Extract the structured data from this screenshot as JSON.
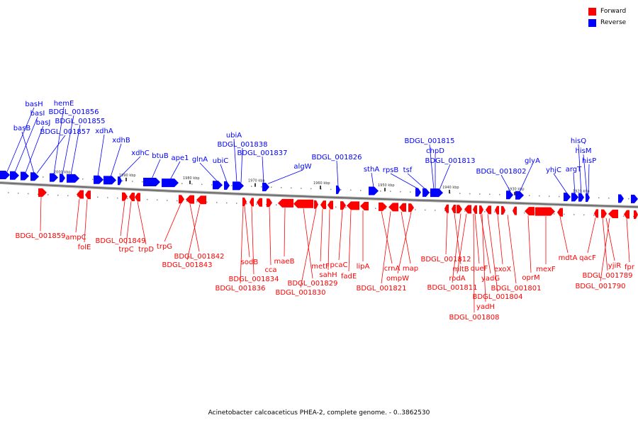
{
  "legend": [
    {
      "label": "Forward",
      "color": "#ff0000"
    },
    {
      "label": "Reverse",
      "color": "#0000ff"
    }
  ],
  "caption": "Acinetobacter calcoaceticus PHEA-2, complete genome. - 0..3862530",
  "ticks": [
    "2000 kbp",
    "1990 kbp",
    "1980 kbp",
    "1970 kbp",
    "1960 kbp",
    "1950 kbp",
    "1940 kbp",
    "1930 kbp",
    "1920 kbp"
  ],
  "reverse_labels": [
    "basH",
    "basI",
    "basJ",
    "basB",
    "hemE",
    "BDGL_001856",
    "BDGL_001855",
    "BDGL_001857",
    "xdhA",
    "xdhB",
    "xdhC",
    "btuB",
    "ape1",
    "glnA",
    "ubiC",
    "ubiA",
    "BDGL_001838",
    "BDGL_001837",
    "algW",
    "BDGL_001826",
    "sthA",
    "rpsB",
    "tsf",
    "BDGL_001815",
    "chpD",
    "BDGL_001813",
    "BDGL_001802",
    "glyA",
    "yhjC",
    "argT",
    "hisQ",
    "hisM",
    "hisP"
  ],
  "forward_labels": [
    "BDGL_001859",
    "ampC",
    "folE",
    "BDGL_001849",
    "trpC",
    "trpD",
    "trpG",
    "BDGL_001842",
    "BDGL_001843",
    "sodB",
    "BDGL_001834",
    "BDGL_001836",
    "cca",
    "maeB",
    "BDGL_001829",
    "BDGL_001830",
    "metF",
    "sahH",
    "pcaC",
    "fadE",
    "lipA",
    "crnA",
    "map",
    "ompW",
    "BDGL_001821",
    "BDGL_001812",
    "mltB",
    "BDGL_001811",
    "rodA",
    "queF",
    "yadG",
    "BDGL_001804",
    "yadH",
    "BDGL_001808",
    "exoX",
    "BDGL_001801",
    "oprM",
    "mexF",
    "mdtA",
    "qacF",
    "yjiR",
    "fpr",
    "BDGL_001789",
    "BDGL_001790"
  ]
}
